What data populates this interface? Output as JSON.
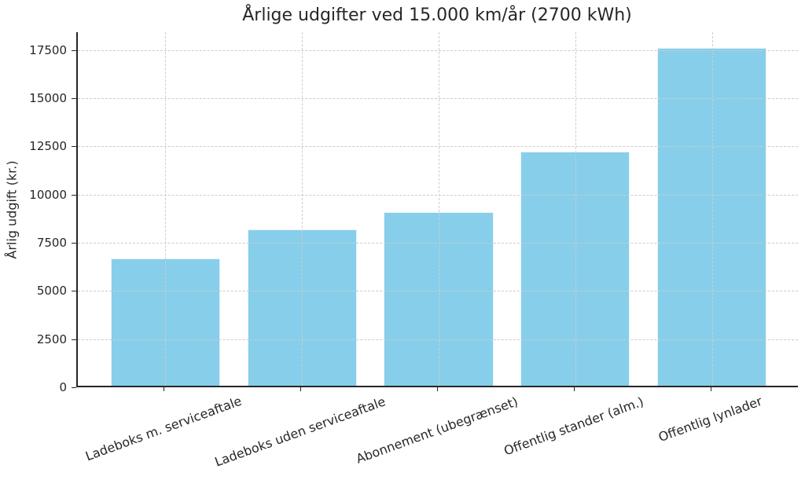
{
  "chart_data": {
    "type": "bar",
    "title": "Årlige udgifter ved 15.000 km/år (2700 kWh)",
    "xlabel": "",
    "ylabel": "Årlig udgift (kr.)",
    "categories": [
      "Ladeboks m. serviceaftale",
      "Ladeboks uden serviceaftale",
      "Abonnement (ubegrænset)",
      "Offentlig stander (alm.)",
      "Offentlig lynlader"
    ],
    "values": [
      6615,
      8100,
      9000,
      12150,
      17550
    ],
    "yticks": [
      0,
      2500,
      5000,
      7500,
      10000,
      12500,
      15000,
      17500
    ],
    "ylim": [
      0,
      18430
    ],
    "x_tick_rotation_deg": 20,
    "grid": true,
    "legend_position": "none",
    "bar_color": "#87CEEB",
    "grid_color": "#cccccc",
    "text_color": "#262626",
    "spine_color": "#262626"
  }
}
